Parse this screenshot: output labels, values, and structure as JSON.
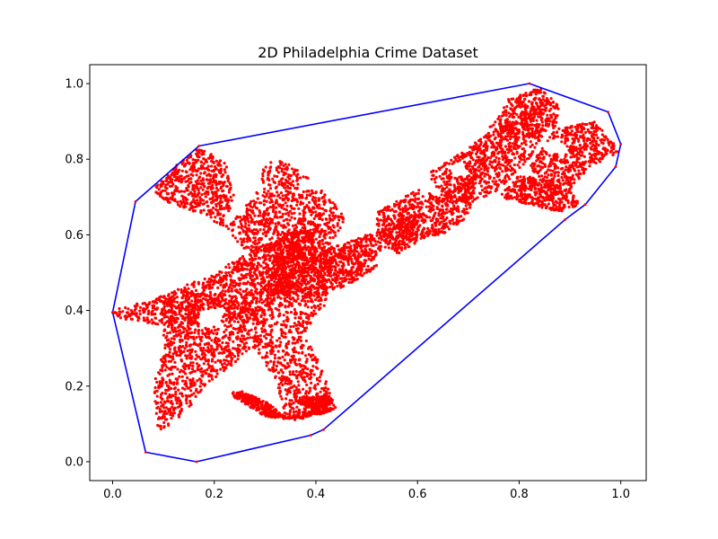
{
  "chart_data": {
    "type": "scatter",
    "title": "2D Philadelphia Crime Dataset",
    "xlabel": "",
    "ylabel": "",
    "xlim": [
      -0.045,
      1.05
    ],
    "ylim": [
      -0.05,
      1.05
    ],
    "x_ticks": [
      "0.0",
      "0.2",
      "0.4",
      "0.6",
      "0.8",
      "1.0"
    ],
    "y_ticks": [
      "0.0",
      "0.2",
      "0.4",
      "0.6",
      "0.8",
      "1.0"
    ],
    "grid": false,
    "legend": "none",
    "colors": {
      "points": "#ff0000",
      "hull": "#0000ff"
    },
    "hull": [
      [
        0.0,
        0.395
      ],
      [
        0.045,
        0.688
      ],
      [
        0.17,
        0.835
      ],
      [
        0.82,
        1.0
      ],
      [
        0.975,
        0.925
      ],
      [
        1.0,
        0.84
      ],
      [
        0.99,
        0.78
      ],
      [
        0.93,
        0.68
      ],
      [
        0.89,
        0.64
      ],
      [
        0.415,
        0.085
      ],
      [
        0.39,
        0.07
      ],
      [
        0.165,
        0.0
      ],
      [
        0.065,
        0.025
      ],
      [
        0.0,
        0.395
      ]
    ],
    "point_regions": [
      [
        [
          0.0,
          0.4
        ],
        [
          0.1,
          0.44
        ],
        [
          0.2,
          0.5
        ],
        [
          0.29,
          0.57
        ],
        [
          0.4,
          0.62
        ],
        [
          0.4,
          0.5
        ],
        [
          0.3,
          0.4
        ],
        [
          0.2,
          0.36
        ],
        [
          0.1,
          0.36
        ],
        [
          0.0,
          0.38
        ]
      ],
      [
        [
          0.1,
          0.43
        ],
        [
          0.18,
          0.45
        ],
        [
          0.3,
          0.4
        ],
        [
          0.3,
          0.32
        ],
        [
          0.25,
          0.27
        ],
        [
          0.18,
          0.2
        ],
        [
          0.14,
          0.12
        ],
        [
          0.09,
          0.08
        ],
        [
          0.08,
          0.2
        ],
        [
          0.1,
          0.3
        ]
      ],
      [
        [
          0.28,
          0.4
        ],
        [
          0.32,
          0.58
        ],
        [
          0.4,
          0.64
        ],
        [
          0.44,
          0.55
        ],
        [
          0.42,
          0.42
        ],
        [
          0.38,
          0.34
        ],
        [
          0.42,
          0.22
        ],
        [
          0.44,
          0.14
        ],
        [
          0.4,
          0.13
        ],
        [
          0.34,
          0.12
        ],
        [
          0.32,
          0.22
        ],
        [
          0.28,
          0.3
        ]
      ],
      [
        [
          0.23,
          0.2
        ],
        [
          0.3,
          0.16
        ],
        [
          0.34,
          0.12
        ],
        [
          0.42,
          0.14
        ],
        [
          0.44,
          0.14
        ],
        [
          0.42,
          0.13
        ],
        [
          0.36,
          0.11
        ],
        [
          0.3,
          0.12
        ],
        [
          0.24,
          0.17
        ]
      ],
      [
        [
          0.22,
          0.62
        ],
        [
          0.28,
          0.7
        ],
        [
          0.3,
          0.79
        ],
        [
          0.33,
          0.8
        ],
        [
          0.38,
          0.76
        ],
        [
          0.43,
          0.7
        ],
        [
          0.46,
          0.64
        ],
        [
          0.42,
          0.56
        ],
        [
          0.33,
          0.52
        ],
        [
          0.26,
          0.56
        ]
      ],
      [
        [
          0.08,
          0.72
        ],
        [
          0.12,
          0.78
        ],
        [
          0.17,
          0.83
        ],
        [
          0.22,
          0.8
        ],
        [
          0.24,
          0.7
        ],
        [
          0.22,
          0.62
        ],
        [
          0.18,
          0.65
        ],
        [
          0.14,
          0.67
        ],
        [
          0.1,
          0.69
        ]
      ],
      [
        [
          0.3,
          0.45
        ],
        [
          0.4,
          0.55
        ],
        [
          0.5,
          0.6
        ],
        [
          0.55,
          0.62
        ],
        [
          0.6,
          0.66
        ],
        [
          0.6,
          0.58
        ],
        [
          0.55,
          0.54
        ],
        [
          0.48,
          0.48
        ],
        [
          0.4,
          0.43
        ]
      ],
      [
        [
          0.52,
          0.66
        ],
        [
          0.6,
          0.72
        ],
        [
          0.65,
          0.7
        ],
        [
          0.72,
          0.78
        ],
        [
          0.7,
          0.65
        ],
        [
          0.65,
          0.6
        ],
        [
          0.58,
          0.58
        ],
        [
          0.52,
          0.6
        ]
      ],
      [
        [
          0.62,
          0.76
        ],
        [
          0.7,
          0.83
        ],
        [
          0.75,
          0.88
        ],
        [
          0.8,
          0.9
        ],
        [
          0.86,
          0.88
        ],
        [
          0.82,
          0.8
        ],
        [
          0.76,
          0.72
        ],
        [
          0.7,
          0.68
        ],
        [
          0.65,
          0.7
        ]
      ],
      [
        [
          0.74,
          0.88
        ],
        [
          0.78,
          0.96
        ],
        [
          0.84,
          0.99
        ],
        [
          0.88,
          0.94
        ],
        [
          0.87,
          0.88
        ],
        [
          0.8,
          0.86
        ]
      ],
      [
        [
          0.82,
          0.78
        ],
        [
          0.87,
          0.88
        ],
        [
          0.95,
          0.9
        ],
        [
          0.98,
          0.85
        ],
        [
          1.0,
          0.82
        ],
        [
          0.94,
          0.78
        ],
        [
          0.9,
          0.72
        ],
        [
          0.86,
          0.72
        ]
      ],
      [
        [
          0.76,
          0.7
        ],
        [
          0.8,
          0.76
        ],
        [
          0.86,
          0.74
        ],
        [
          0.9,
          0.72
        ],
        [
          0.92,
          0.68
        ],
        [
          0.88,
          0.66
        ],
        [
          0.82,
          0.68
        ]
      ],
      [
        [
          0.36,
          0.16
        ],
        [
          0.42,
          0.18
        ],
        [
          0.44,
          0.16
        ],
        [
          0.4,
          0.13
        ]
      ]
    ],
    "point_holes": [
      [
        [
          0.15,
          0.58
        ],
        [
          0.2,
          0.6
        ],
        [
          0.2,
          0.64
        ],
        [
          0.16,
          0.65
        ],
        [
          0.14,
          0.62
        ]
      ],
      [
        [
          0.37,
          0.74
        ],
        [
          0.41,
          0.76
        ],
        [
          0.4,
          0.72
        ],
        [
          0.36,
          0.71
        ]
      ],
      [
        [
          0.66,
          0.78
        ],
        [
          0.69,
          0.8
        ],
        [
          0.7,
          0.76
        ],
        [
          0.67,
          0.75
        ]
      ],
      [
        [
          0.85,
          0.84
        ],
        [
          0.88,
          0.86
        ],
        [
          0.89,
          0.82
        ],
        [
          0.86,
          0.81
        ]
      ],
      [
        [
          0.52,
          0.55
        ],
        [
          0.56,
          0.56
        ],
        [
          0.55,
          0.52
        ],
        [
          0.51,
          0.52
        ]
      ],
      [
        [
          0.17,
          0.4
        ],
        [
          0.22,
          0.41
        ],
        [
          0.21,
          0.36
        ],
        [
          0.17,
          0.35
        ]
      ],
      [
        [
          0.22,
          0.22
        ],
        [
          0.27,
          0.23
        ],
        [
          0.26,
          0.19
        ],
        [
          0.22,
          0.18
        ]
      ]
    ]
  }
}
